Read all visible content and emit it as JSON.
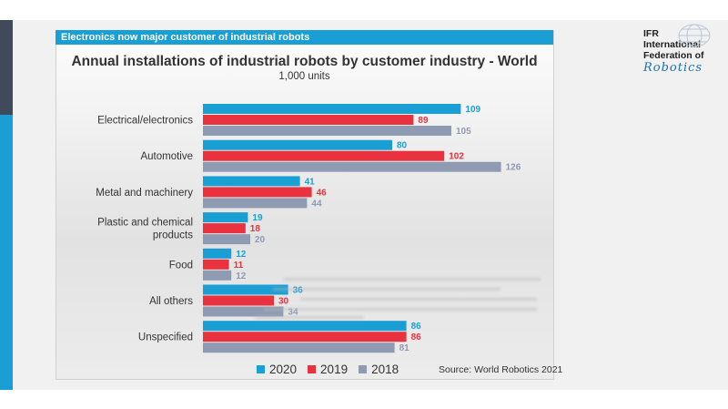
{
  "header": {
    "banner": "Electronics now major customer of industrial robots"
  },
  "logo": {
    "line1": "IFR",
    "line2": "International",
    "line3": "Federation of",
    "line4": "Robotics"
  },
  "source": "Source: World Robotics 2021",
  "colors": {
    "2020": "#1a9fd4",
    "2019": "#e8333f",
    "2018": "#8f9bb3",
    "banner": "#1a9fd4"
  },
  "chart_data": {
    "type": "bar",
    "orientation": "horizontal",
    "title": "Annual installations of industrial robots by customer industry - World",
    "subtitle": "1,000 units",
    "categories": [
      "Electrical/electronics",
      "Automotive",
      "Metal and machinery",
      "Plastic and chemical products",
      "Food",
      "All others",
      "Unspecified"
    ],
    "category_lines": [
      [
        "Electrical/electronics"
      ],
      [
        "Automotive"
      ],
      [
        "Metal and machinery"
      ],
      [
        "Plastic and chemical",
        "products"
      ],
      [
        "Food"
      ],
      [
        "All others"
      ],
      [
        "Unspecified"
      ]
    ],
    "series": [
      {
        "name": "2020",
        "color": "#1a9fd4",
        "label_color": "#1a9fd4",
        "values": [
          109,
          80,
          41,
          19,
          12,
          36,
          86
        ]
      },
      {
        "name": "2019",
        "color": "#e8333f",
        "label_color": "#e8333f",
        "values": [
          89,
          102,
          46,
          18,
          11,
          30,
          86
        ]
      },
      {
        "name": "2018",
        "color": "#8f9bb3",
        "label_color": "#8f9bb3",
        "values": [
          105,
          126,
          44,
          20,
          12,
          34,
          81
        ]
      }
    ],
    "xlim": [
      0,
      130
    ],
    "legend": "bottom",
    "grid": false
  }
}
